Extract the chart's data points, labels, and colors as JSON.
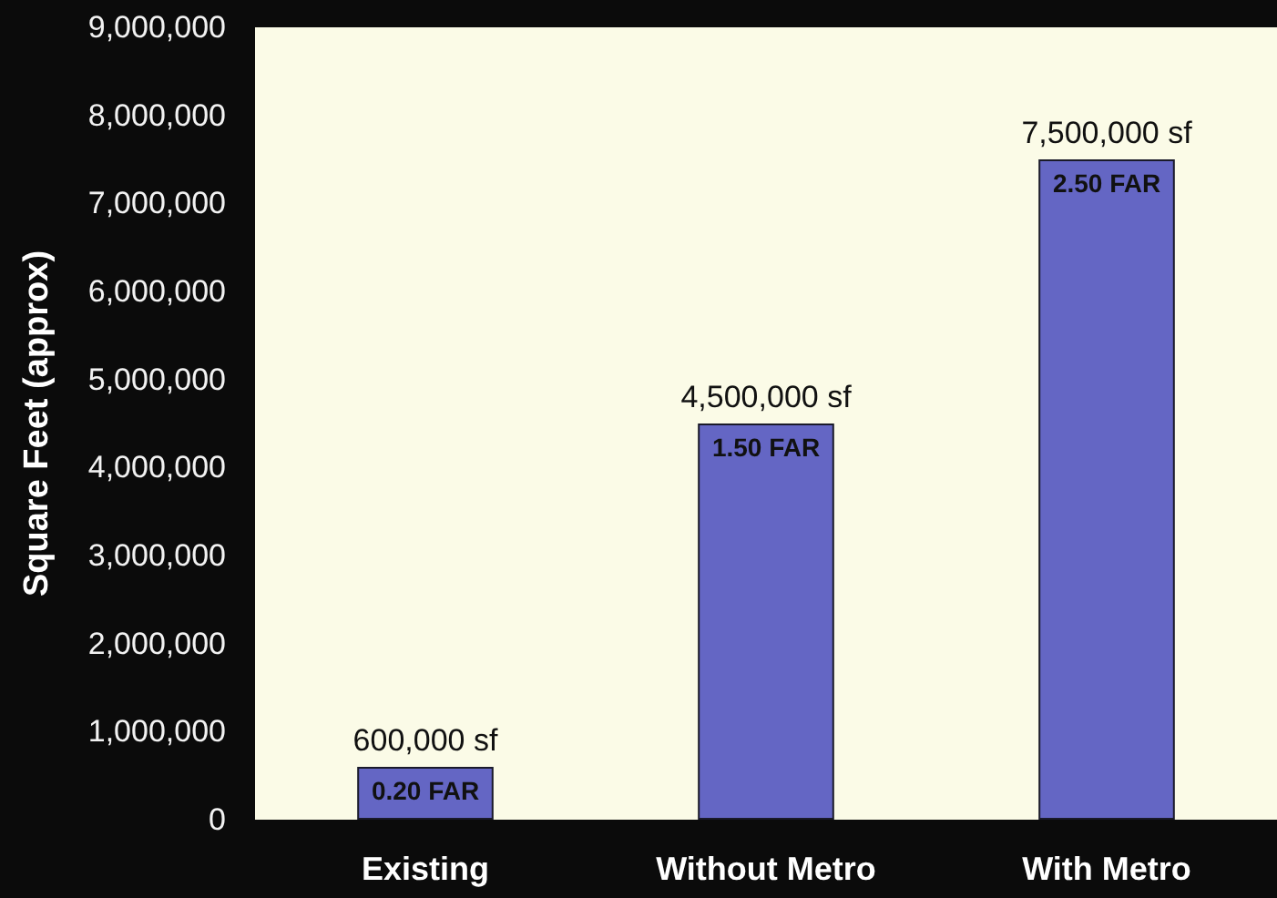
{
  "chart_data": {
    "type": "bar",
    "ylabel": "Square Feet (approx)",
    "categories": [
      "Existing",
      "Without Metro",
      "With Metro"
    ],
    "values": [
      600000,
      4500000,
      7500000
    ],
    "color": "#6466c4",
    "value_labels": [
      "600,000 sf",
      "4,500,000 sf",
      "7,500,000 sf"
    ],
    "annotations": [
      {
        "text": "0.20 FAR",
        "x": "Existing",
        "y": 600000
      },
      {
        "text": "1.50 FAR",
        "x": "Without Metro",
        "y": 4500000
      },
      {
        "text": "2.50 FAR",
        "x": "With Metro",
        "y": 7500000
      }
    ],
    "ylim": [
      0,
      9000000
    ],
    "yticks": [
      {
        "value": 0,
        "label": "0"
      },
      {
        "value": 1000000,
        "label": "1,000,000"
      },
      {
        "value": 2000000,
        "label": "2,000,000"
      },
      {
        "value": 3000000,
        "label": "3,000,000"
      },
      {
        "value": 4000000,
        "label": "4,000,000"
      },
      {
        "value": 5000000,
        "label": "5,000,000"
      },
      {
        "value": 6000000,
        "label": "6,000,000"
      },
      {
        "value": 7000000,
        "label": "7,000,000"
      },
      {
        "value": 8000000,
        "label": "8,000,000"
      },
      {
        "value": 9000000,
        "label": "9,000,000"
      }
    ]
  }
}
